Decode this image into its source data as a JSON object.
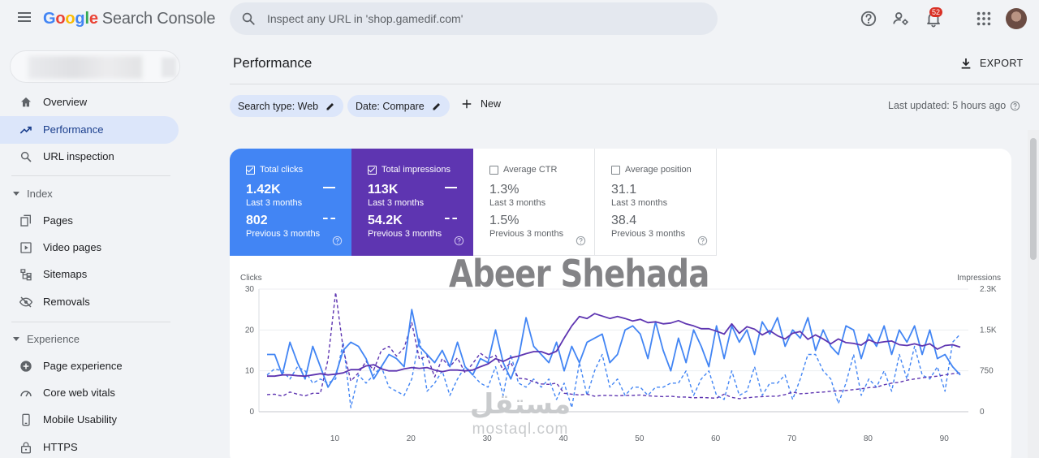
{
  "header": {
    "logo_google": "Google",
    "logo_product": "Search Console",
    "search_placeholder": "Inspect any URL in 'shop.gamedif.com'",
    "notification_count": "52",
    "icons": [
      "menu-icon",
      "search-icon",
      "help-icon",
      "manage-accounts-icon",
      "bell-icon",
      "apps-grid-icon",
      "avatar"
    ]
  },
  "sidebar": {
    "items": [
      {
        "label": "Overview",
        "icon": "home-icon"
      },
      {
        "label": "Performance",
        "icon": "trending-up-icon",
        "active": true
      },
      {
        "label": "URL inspection",
        "icon": "search-icon"
      }
    ],
    "sections": [
      {
        "title": "Index",
        "items": [
          {
            "label": "Pages",
            "icon": "pages-icon"
          },
          {
            "label": "Video pages",
            "icon": "video-pages-icon"
          },
          {
            "label": "Sitemaps",
            "icon": "sitemap-icon"
          },
          {
            "label": "Removals",
            "icon": "removals-icon"
          }
        ]
      },
      {
        "title": "Experience",
        "items": [
          {
            "label": "Page experience",
            "icon": "page-experience-icon"
          },
          {
            "label": "Core web vitals",
            "icon": "speedometer-icon"
          },
          {
            "label": "Mobile Usability",
            "icon": "mobile-icon"
          },
          {
            "label": "HTTPS",
            "icon": "lock-icon"
          }
        ]
      }
    ]
  },
  "main": {
    "title": "Performance",
    "export_label": "EXPORT",
    "filters": [
      {
        "label": "Search type: Web"
      },
      {
        "label": "Date: Compare"
      }
    ],
    "new_label": "New",
    "last_updated": "Last updated: 5 hours ago"
  },
  "metrics": [
    {
      "name": "Total clicks",
      "checked": true,
      "current_value": "1.42K",
      "current_label": "Last 3 months",
      "previous_value": "802",
      "previous_label": "Previous 3 months",
      "color": "#4285f4"
    },
    {
      "name": "Total impressions",
      "checked": true,
      "current_value": "113K",
      "current_label": "Last 3 months",
      "previous_value": "54.2K",
      "previous_label": "Previous 3 months",
      "color": "#5e35b1"
    },
    {
      "name": "Average CTR",
      "checked": false,
      "current_value": "1.3%",
      "current_label": "Last 3 months",
      "previous_value": "1.5%",
      "previous_label": "Previous 3 months"
    },
    {
      "name": "Average position",
      "checked": false,
      "current_value": "31.1",
      "current_label": "Last 3 months",
      "previous_value": "38.4",
      "previous_label": "Previous 3 months"
    }
  ],
  "watermark": {
    "text": "Abeer Shehada",
    "brand_arabic": "مستقل",
    "brand_latin": "mostaql.com"
  },
  "chart_data": {
    "type": "line",
    "ylabel": "Clicks",
    "y2label": "Impressions",
    "ylim": [
      0,
      30
    ],
    "y2lim": [
      0,
      2250
    ],
    "y_ticks": [
      "0",
      "10",
      "20",
      "30"
    ],
    "y2_ticks": [
      "0",
      "750",
      "1.5K",
      "2.3K"
    ],
    "x_ticks": [
      "10",
      "20",
      "30",
      "40",
      "50",
      "60",
      "70",
      "80",
      "90"
    ],
    "x": [
      1,
      2,
      3,
      4,
      5,
      6,
      7,
      8,
      9,
      10,
      11,
      12,
      13,
      14,
      15,
      16,
      17,
      18,
      19,
      20,
      21,
      22,
      23,
      24,
      25,
      26,
      27,
      28,
      29,
      30,
      31,
      32,
      33,
      34,
      35,
      36,
      37,
      38,
      39,
      40,
      41,
      42,
      43,
      44,
      45,
      46,
      47,
      48,
      49,
      50,
      51,
      52,
      53,
      54,
      55,
      56,
      57,
      58,
      59,
      60,
      61,
      62,
      63,
      64,
      65,
      66,
      67,
      68,
      69,
      70,
      71,
      72,
      73,
      74,
      75,
      76,
      77,
      78,
      79,
      80,
      81,
      82,
      83,
      84,
      85,
      86,
      87,
      88,
      89,
      90,
      91,
      92
    ],
    "series": [
      {
        "name": "Total clicks",
        "color": "#4285f4",
        "dashed": false,
        "axis": "left",
        "values": [
          14,
          14,
          9,
          17,
          12,
          8,
          16,
          11,
          6,
          9,
          15,
          17,
          16,
          13,
          8,
          11,
          14,
          13,
          11,
          25,
          16,
          14,
          12,
          15,
          11,
          17,
          11,
          9,
          13,
          12,
          20,
          12,
          8,
          13,
          23,
          16,
          14,
          12,
          17,
          10,
          16,
          12,
          17,
          18,
          19,
          12,
          14,
          20,
          21,
          19,
          13,
          22,
          15,
          10,
          18,
          12,
          20,
          16,
          11,
          21,
          13,
          21,
          17,
          20,
          14,
          22,
          19,
          23,
          16,
          20,
          18,
          23,
          15,
          20,
          16,
          14,
          21,
          20,
          13,
          19,
          16,
          21,
          14,
          20,
          17,
          21,
          14,
          20,
          13,
          14,
          11,
          9
        ]
      },
      {
        "name": "Total impressions",
        "color": "#5e35b1",
        "dashed": false,
        "axis": "left",
        "values": [
          8.7,
          8.7,
          9,
          9,
          8.8,
          8.7,
          9,
          9.3,
          9,
          9.2,
          9.5,
          10.3,
          10.3,
          11.2,
          11.5,
          10.5,
          10,
          10,
          10.5,
          10.8,
          10.6,
          10.8,
          10.2,
          9.8,
          10.2,
          10.2,
          10,
          10.2,
          11,
          11.7,
          13,
          12.3,
          13.2,
          13.6,
          14.2,
          14.7,
          14.7,
          14,
          14.8,
          18,
          21,
          23.3,
          22.8,
          24,
          23.4,
          22.8,
          23.3,
          22.8,
          22.2,
          22.6,
          21.8,
          22,
          21.5,
          21.7,
          22.3,
          21.5,
          21,
          20.3,
          20.3,
          19.7,
          19,
          21.5,
          19.2,
          20.8,
          20.2,
          18.8,
          19.8,
          18.6,
          17.8,
          19.2,
          19.6,
          17.7,
          18.8,
          17.8,
          16.6,
          17.8,
          16.9,
          16.7,
          16.3,
          17.6,
          16.8,
          17.1,
          17.3,
          16.4,
          16.2,
          16.6,
          16.1,
          16.6,
          15.3,
          16.2,
          16.4,
          15.8
        ]
      },
      {
        "name": "Total clicks (previous)",
        "color": "#4285f4",
        "dashed": true,
        "axis": "left",
        "values": [
          9,
          10.5,
          10,
          8,
          11,
          10,
          7,
          8,
          7,
          8,
          17,
          1,
          9,
          7,
          9,
          11,
          6,
          5,
          4,
          8,
          18,
          5,
          7,
          10,
          4,
          8,
          11,
          9,
          7,
          6,
          11,
          4,
          14,
          7,
          6,
          8,
          6,
          8,
          3,
          7,
          1,
          12,
          4,
          10,
          14,
          6,
          8,
          4,
          6,
          6,
          4,
          6,
          6,
          7,
          7,
          10,
          4,
          8,
          10,
          4,
          3,
          10,
          4,
          5,
          11,
          4,
          7,
          7,
          9,
          3,
          8,
          14,
          14,
          10,
          8,
          2,
          7,
          14,
          4,
          8,
          6,
          10,
          5,
          14,
          8,
          16,
          9,
          8,
          11,
          5,
          17,
          19
        ]
      },
      {
        "name": "Total impressions (previous)",
        "color": "#5e35b1",
        "dashed": true,
        "axis": "left",
        "values": [
          4.2,
          4.3,
          3.8,
          4.8,
          4.3,
          3.9,
          4.5,
          4.5,
          12.8,
          29.2,
          15.4,
          7.5,
          9.5,
          12.3,
          10.2,
          15,
          16,
          13.6,
          15.6,
          21.8,
          12.8,
          13.7,
          8.5,
          13,
          11,
          13.2,
          9.5,
          11.8,
          14.3,
          13,
          13.8,
          10.2,
          12,
          8.2,
          8,
          7.3,
          6.8,
          6.7,
          7,
          4.5,
          4.3,
          4.1,
          4.3,
          3.8,
          4,
          4,
          3.9,
          4,
          4,
          4.1,
          3.9,
          3.8,
          3.7,
          3.8,
          3.6,
          3.6,
          3.4,
          3.5,
          3.4,
          3.3,
          4.3,
          3.5,
          3.2,
          3.4,
          3.6,
          3.7,
          3.8,
          3.8,
          4.2,
          4.8,
          4.4,
          4.5,
          4.7,
          4.8,
          5,
          5.1,
          5.2,
          5.4,
          5.6,
          5.9,
          6,
          6.6,
          7,
          7.2,
          7.7,
          8,
          8.3,
          8.5,
          8.7,
          9,
          9.3,
          9.5
        ]
      }
    ]
  }
}
